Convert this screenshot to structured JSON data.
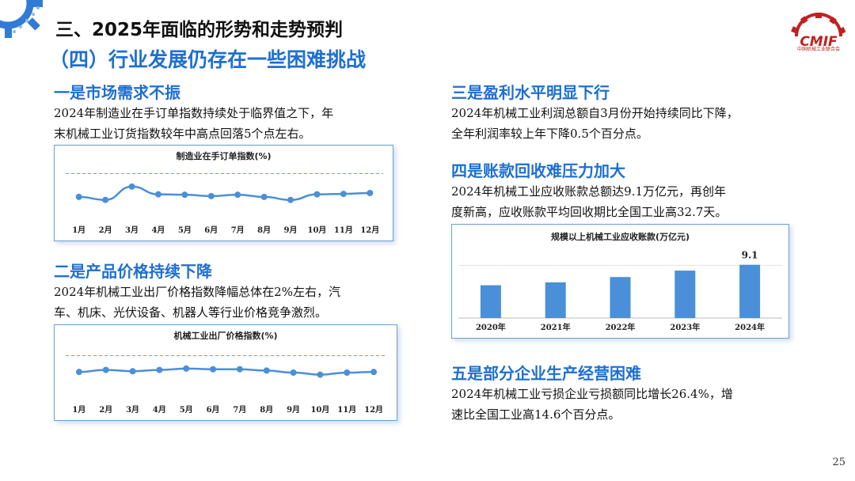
{
  "header": {
    "title": "三、2025年面临的形势和走势预判",
    "subtitle": "（四）行业发展仍存在一些困难挑战"
  },
  "logo": {
    "mark": "CMIF",
    "name": "中国机械工业联合会"
  },
  "sections": {
    "s1": {
      "heading": "一是市场需求不振",
      "line1": "2024年制造业在手订单指数持续处于临界值之下，年",
      "line2": "末机械工业订货指数较年中高点回落5个点左右。"
    },
    "s2": {
      "heading": "二是产品价格持续下降",
      "line1": "2024年机械工业出厂价格指数降幅总体在2%左右，汽",
      "line2": "车、机床、光伏设备、机器人等行业价格竞争激烈。"
    },
    "s3": {
      "heading": "三是盈利水平明显下行",
      "line1": "2024年机械工业利润总额自3月份开始持续同比下降，",
      "line2": "全年利润率较上年下降0.5个百分点。"
    },
    "s4": {
      "heading": "四是账款回收难压力加大",
      "line1": "2024年机械工业应收账款总额达9.1万亿元，再创年",
      "line2": "度新高，应收账款平均回收期比全国工业高32.7天。"
    },
    "s5": {
      "heading": "五是部分企业生产经营困难",
      "line1": "2024年机械工业亏损企业亏损额同比增长26.4%，增",
      "line2": "速比全国工业高14.6个百分点。"
    }
  },
  "page_number": "25",
  "colors": {
    "accent": "#1e6fd0",
    "series": "#4a8fd8",
    "reference_line": "#f28c28",
    "chart_border": "#6a9fd8"
  },
  "chart_data": [
    {
      "type": "line",
      "title": "制造业在手订单指数(%)",
      "categories": [
        "1月",
        "2月",
        "3月",
        "4月",
        "5月",
        "6月",
        "7月",
        "8月",
        "9月",
        "10月",
        "11月",
        "12月"
      ],
      "values": [
        44.6,
        43.9,
        47.0,
        45.2,
        45.1,
        44.8,
        45.1,
        44.6,
        43.9,
        45.2,
        45.3,
        45.5
      ],
      "reference_line": 50,
      "ylim": [
        40,
        51
      ],
      "reference_line_style": "dashed"
    },
    {
      "type": "line",
      "title": "机械工业出厂价格指数(%)",
      "categories": [
        "1月",
        "2月",
        "3月",
        "4月",
        "5月",
        "6月",
        "7月",
        "8月",
        "9月",
        "10月",
        "11月",
        "12月"
      ],
      "values": [
        97.6,
        97.9,
        97.7,
        97.9,
        98.1,
        98.0,
        98.0,
        97.8,
        97.5,
        97.2,
        97.5,
        97.6
      ],
      "reference_line": 100,
      "ylim": [
        94,
        101
      ],
      "reference_line_style": "dashed"
    },
    {
      "type": "bar",
      "title": "规模以上机械工业应收账款(万亿元)",
      "categories": [
        "2020年",
        "2021年",
        "2022年",
        "2023年",
        "2024年"
      ],
      "values": [
        5.6,
        6.1,
        7.0,
        8.1,
        9.1
      ],
      "data_labels": [
        "",
        "",
        "",
        "",
        "9.1"
      ],
      "ylim": [
        0,
        10
      ]
    }
  ]
}
